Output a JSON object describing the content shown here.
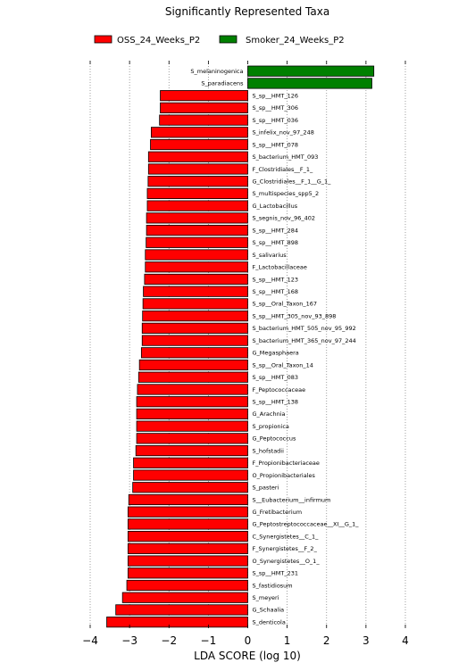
{
  "chart_data": {
    "type": "bar",
    "orientation": "horizontal",
    "title": "Significantly Represented Taxa",
    "xlabel": "LDA SCORE (log 10)",
    "xlim": [
      -4,
      4
    ],
    "xticks": [
      -4,
      -3,
      -2,
      -1,
      0,
      1,
      2,
      3,
      4
    ],
    "grid": "vertical dotted",
    "legend_position": "top",
    "series": [
      {
        "name": "OSS_24_Weeks_P2",
        "color": "#ff0000"
      },
      {
        "name": "Smoker_24_Weeks_P2",
        "color": "#008000"
      }
    ],
    "bars": [
      {
        "label": "S_melaninogenica",
        "value": 3.2,
        "group": "Smoker_24_Weeks_P2"
      },
      {
        "label": "S_paradiacens",
        "value": 3.15,
        "group": "Smoker_24_Weeks_P2"
      },
      {
        "label": "S_sp__HMT_126",
        "value": -2.22,
        "group": "OSS_24_Weeks_P2"
      },
      {
        "label": "S_sp__HMT_306",
        "value": -2.22,
        "group": "OSS_24_Weeks_P2"
      },
      {
        "label": "S_sp__HMT_036",
        "value": -2.24,
        "group": "OSS_24_Weeks_P2"
      },
      {
        "label": "S_infelix_nov_97_248",
        "value": -2.45,
        "group": "OSS_24_Weeks_P2"
      },
      {
        "label": "S_sp__HMT_078",
        "value": -2.47,
        "group": "OSS_24_Weeks_P2"
      },
      {
        "label": "S_bacterium_HMT_093",
        "value": -2.52,
        "group": "OSS_24_Weeks_P2"
      },
      {
        "label": "F_Clostridiales__F_1_",
        "value": -2.52,
        "group": "OSS_24_Weeks_P2"
      },
      {
        "label": "G_Clostridiales__F_1__G_1_",
        "value": -2.53,
        "group": "OSS_24_Weeks_P2"
      },
      {
        "label": "S_multispecies_spp5_2",
        "value": -2.55,
        "group": "OSS_24_Weeks_P2"
      },
      {
        "label": "G_Lactobacillus",
        "value": -2.55,
        "group": "OSS_24_Weeks_P2"
      },
      {
        "label": "S_segnis_nov_96_402",
        "value": -2.57,
        "group": "OSS_24_Weeks_P2"
      },
      {
        "label": "S_sp__HMT_284",
        "value": -2.57,
        "group": "OSS_24_Weeks_P2"
      },
      {
        "label": "S_sp__HMT_898",
        "value": -2.58,
        "group": "OSS_24_Weeks_P2"
      },
      {
        "label": "S_salivarius",
        "value": -2.6,
        "group": "OSS_24_Weeks_P2"
      },
      {
        "label": "F_Lactobacillaceae",
        "value": -2.6,
        "group": "OSS_24_Weeks_P2"
      },
      {
        "label": "S_sp__HMT_123",
        "value": -2.62,
        "group": "OSS_24_Weeks_P2"
      },
      {
        "label": "S_sp__HMT_168",
        "value": -2.65,
        "group": "OSS_24_Weeks_P2"
      },
      {
        "label": "S_sp__Oral_Taxon_167",
        "value": -2.66,
        "group": "OSS_24_Weeks_P2"
      },
      {
        "label": "S_sp__HMT_305_nov_93_898",
        "value": -2.67,
        "group": "OSS_24_Weeks_P2"
      },
      {
        "label": "S_bacterium_HMT_505_nov_95_992",
        "value": -2.68,
        "group": "OSS_24_Weeks_P2"
      },
      {
        "label": "S_bacterium_HMT_365_nov_97_244",
        "value": -2.68,
        "group": "OSS_24_Weeks_P2"
      },
      {
        "label": "G_Megasphaera",
        "value": -2.7,
        "group": "OSS_24_Weeks_P2"
      },
      {
        "label": "S_sp__Oral_Taxon_14",
        "value": -2.75,
        "group": "OSS_24_Weeks_P2"
      },
      {
        "label": "S_sp__HMT_083",
        "value": -2.77,
        "group": "OSS_24_Weeks_P2"
      },
      {
        "label": "F_Peptococcaceae",
        "value": -2.8,
        "group": "OSS_24_Weeks_P2"
      },
      {
        "label": "S_sp__HMT_138",
        "value": -2.82,
        "group": "OSS_24_Weeks_P2"
      },
      {
        "label": "G_Arachnia",
        "value": -2.82,
        "group": "OSS_24_Weeks_P2"
      },
      {
        "label": "S_propionica",
        "value": -2.82,
        "group": "OSS_24_Weeks_P2"
      },
      {
        "label": "G_Peptococcus",
        "value": -2.82,
        "group": "OSS_24_Weeks_P2"
      },
      {
        "label": "S_hofstadii",
        "value": -2.84,
        "group": "OSS_24_Weeks_P2"
      },
      {
        "label": "F_Propionibacteriaceae",
        "value": -2.9,
        "group": "OSS_24_Weeks_P2"
      },
      {
        "label": "O_Propionibacteriales",
        "value": -2.9,
        "group": "OSS_24_Weeks_P2"
      },
      {
        "label": "S_pasteri",
        "value": -2.92,
        "group": "OSS_24_Weeks_P2"
      },
      {
        "label": "S__Eubacterium__infirmum",
        "value": -3.02,
        "group": "OSS_24_Weeks_P2"
      },
      {
        "label": "G_Fretibacterium",
        "value": -3.04,
        "group": "OSS_24_Weeks_P2"
      },
      {
        "label": "G_Peptostreptococcaceae__XI__G_1_",
        "value": -3.04,
        "group": "OSS_24_Weeks_P2"
      },
      {
        "label": "C_Synergistetes__C_1_",
        "value": -3.04,
        "group": "OSS_24_Weeks_P2"
      },
      {
        "label": "F_Synergistetes__F_2_",
        "value": -3.04,
        "group": "OSS_24_Weeks_P2"
      },
      {
        "label": "O_Synergistetes__O_1_",
        "value": -3.04,
        "group": "OSS_24_Weeks_P2"
      },
      {
        "label": "S_sp__HMT_231",
        "value": -3.04,
        "group": "OSS_24_Weeks_P2"
      },
      {
        "label": "S_fastidiosum",
        "value": -3.07,
        "group": "OSS_24_Weeks_P2"
      },
      {
        "label": "S_meyeri",
        "value": -3.18,
        "group": "OSS_24_Weeks_P2"
      },
      {
        "label": "G_Schaalia",
        "value": -3.35,
        "group": "OSS_24_Weeks_P2"
      },
      {
        "label": "S_denticola",
        "value": -3.58,
        "group": "OSS_24_Weeks_P2"
      }
    ]
  }
}
